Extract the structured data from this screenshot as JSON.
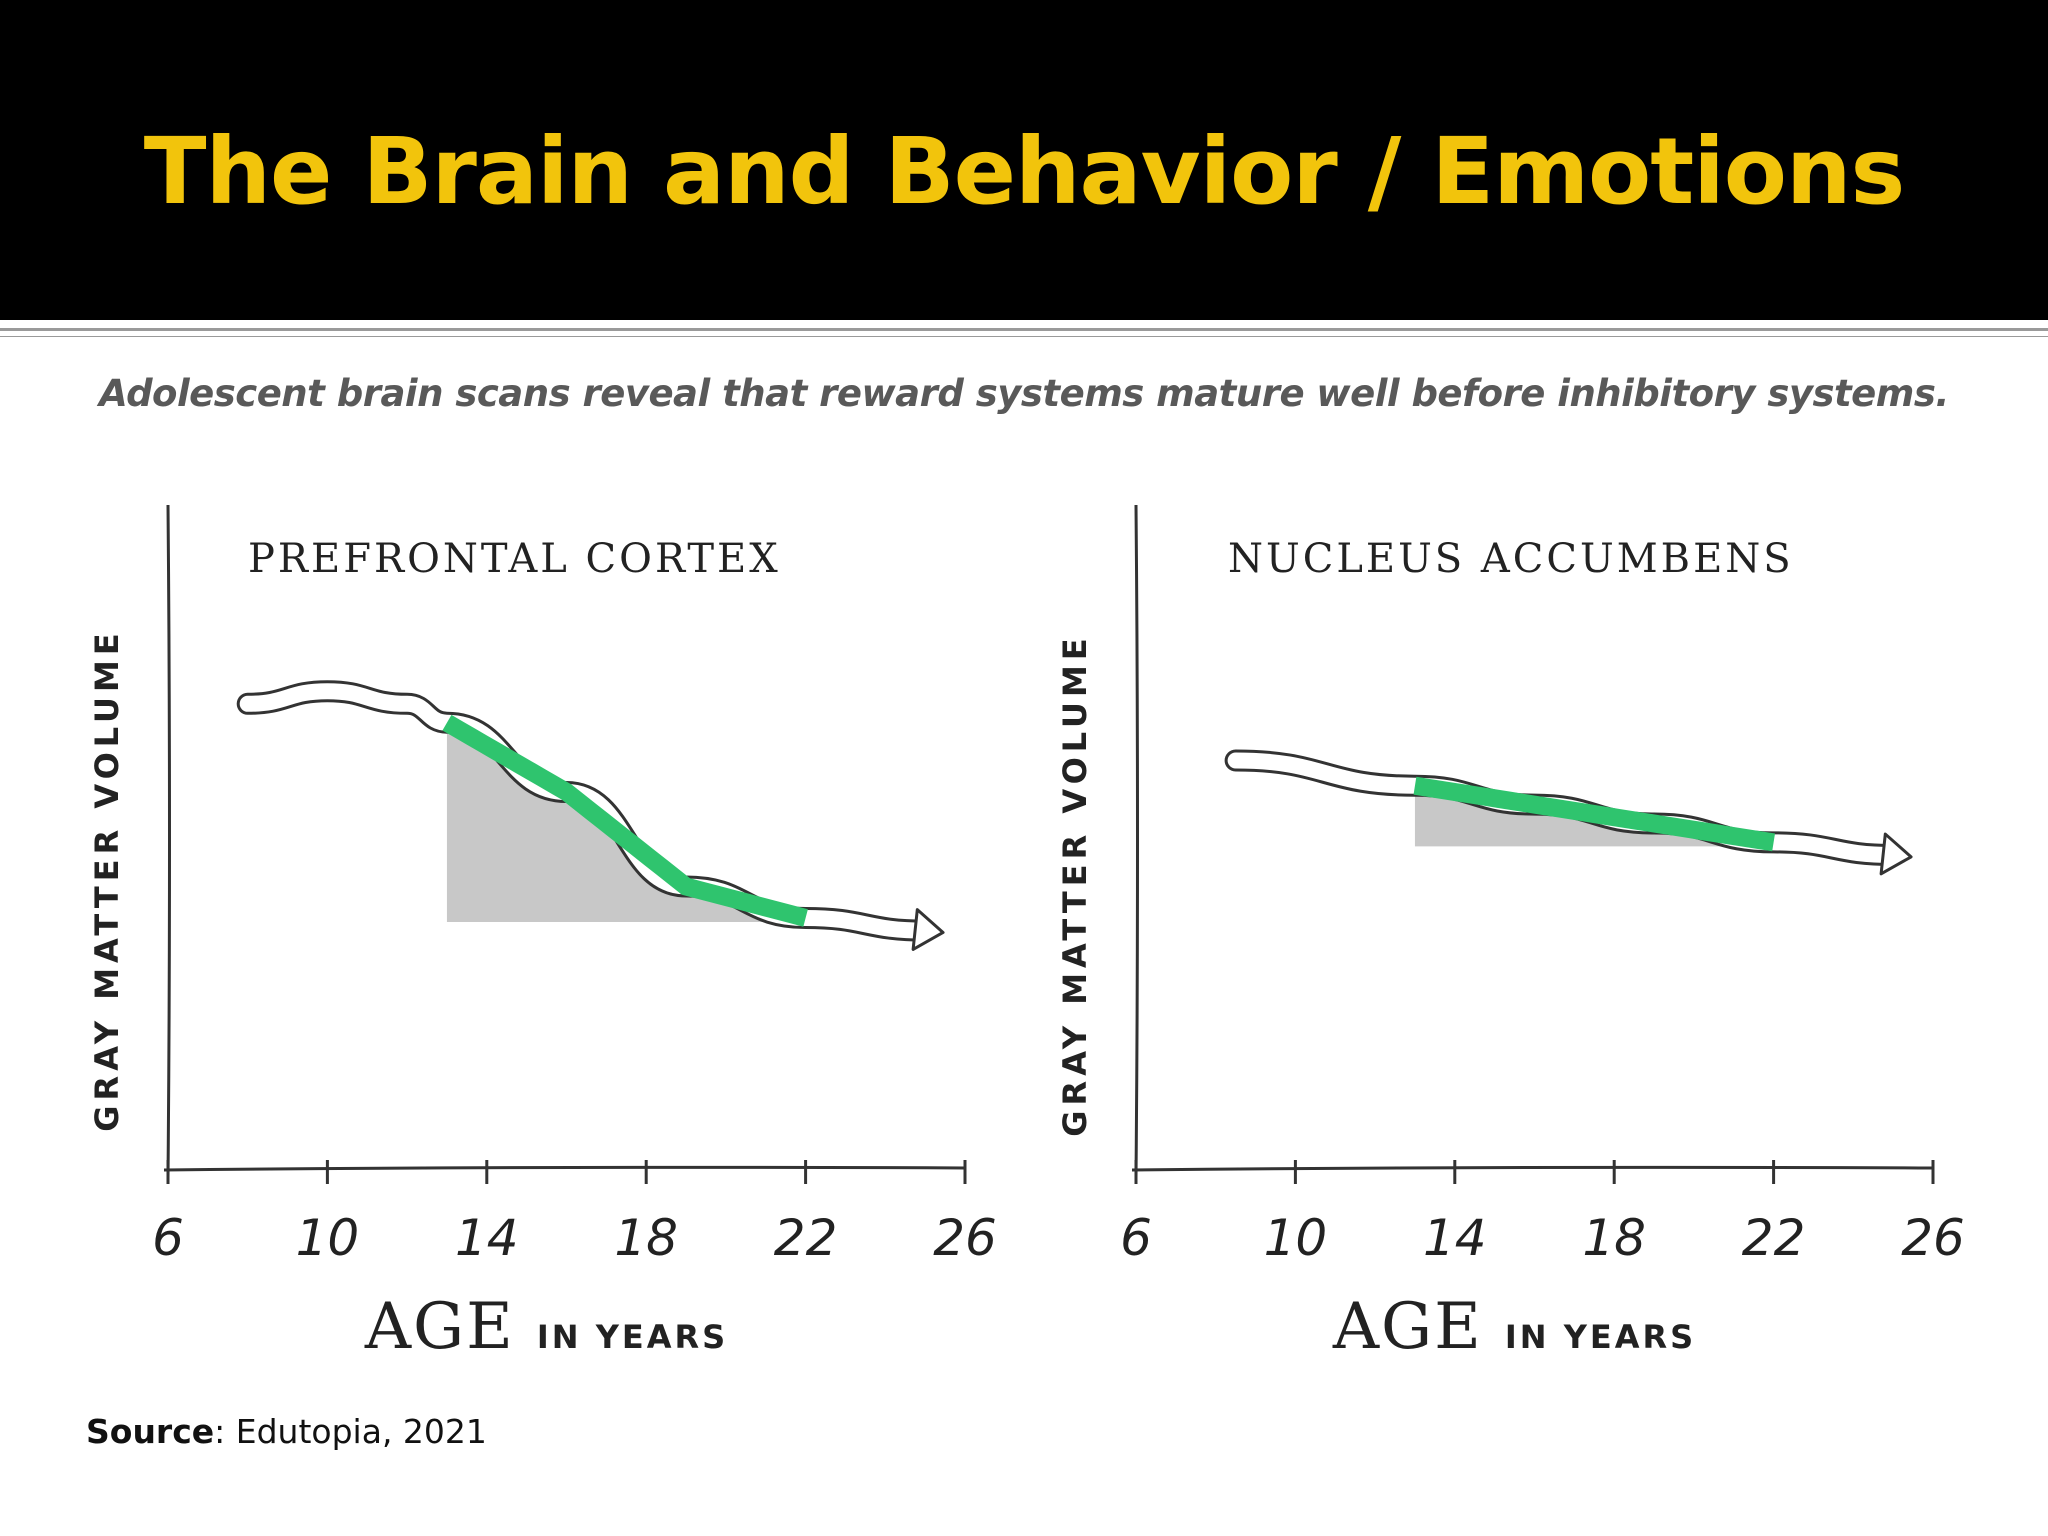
{
  "slide": {
    "title": "The Brain and Behavior / Emotions",
    "subtitle": "Adolescent brain scans reveal that reward systems mature well before inhibitory systems.",
    "source_label": "Source",
    "source_text": ": Edutopia, 2021"
  },
  "colors": {
    "header_bg": "#000000",
    "title": "#f2c40c",
    "highlight": "#2fc46e",
    "shade": "#c8c8c8"
  },
  "chart_data": [
    {
      "type": "line",
      "title": "PREFRONTAL CORTEX",
      "ylabel": "GRAY MATTER VOLUME",
      "xlabel_big": "AGE",
      "xlabel_small": "IN YEARS",
      "xticks": [
        6,
        10,
        14,
        18,
        22,
        26
      ],
      "xlim": [
        6,
        26
      ],
      "ylim": [
        0,
        1
      ],
      "series": [
        {
          "x": [
            8,
            10,
            12,
            13,
            16,
            19,
            22,
            25
          ],
          "y": [
            0.74,
            0.76,
            0.74,
            0.71,
            0.6,
            0.45,
            0.4,
            0.38
          ]
        }
      ],
      "highlight_range": [
        13,
        22
      ]
    },
    {
      "type": "line",
      "title": "NUCLEUS ACCUMBENS",
      "ylabel": "GRAY MATTER VOLUME",
      "xlabel_big": "AGE",
      "xlabel_small": "IN YEARS",
      "xticks": [
        6,
        10,
        14,
        18,
        22,
        26
      ],
      "xlim": [
        6,
        26
      ],
      "ylim": [
        0,
        1
      ],
      "series": [
        {
          "x": [
            8.5,
            13,
            16,
            19,
            22,
            25
          ],
          "y": [
            0.65,
            0.61,
            0.58,
            0.55,
            0.52,
            0.5
          ]
        }
      ],
      "highlight_range": [
        13,
        22
      ]
    }
  ]
}
